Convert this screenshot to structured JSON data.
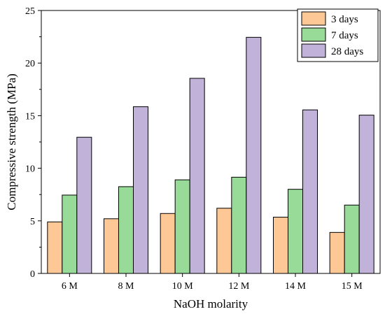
{
  "chart_data": {
    "type": "bar",
    "categories": [
      "6 M",
      "8 M",
      "10 M",
      "12 M",
      "14 M",
      "15 M"
    ],
    "series": [
      {
        "name": "3 days",
        "color": "#FDC896",
        "values": [
          4.9,
          5.2,
          5.7,
          6.2,
          5.35,
          3.9
        ]
      },
      {
        "name": "7 days",
        "color": "#98DA98",
        "values": [
          7.45,
          8.25,
          8.9,
          9.15,
          8.0,
          6.5
        ]
      },
      {
        "name": "28 days",
        "color": "#C1B2D9",
        "values": [
          12.95,
          15.85,
          18.55,
          22.45,
          15.55,
          15.05
        ]
      }
    ],
    "xlabel": "NaOH molarity",
    "ylabel": "Compressive strength (MPa)",
    "ylim": [
      0,
      25
    ],
    "yticks": [
      0,
      5,
      10,
      15,
      20,
      25
    ],
    "grid": false,
    "legend_position": "top-right"
  }
}
